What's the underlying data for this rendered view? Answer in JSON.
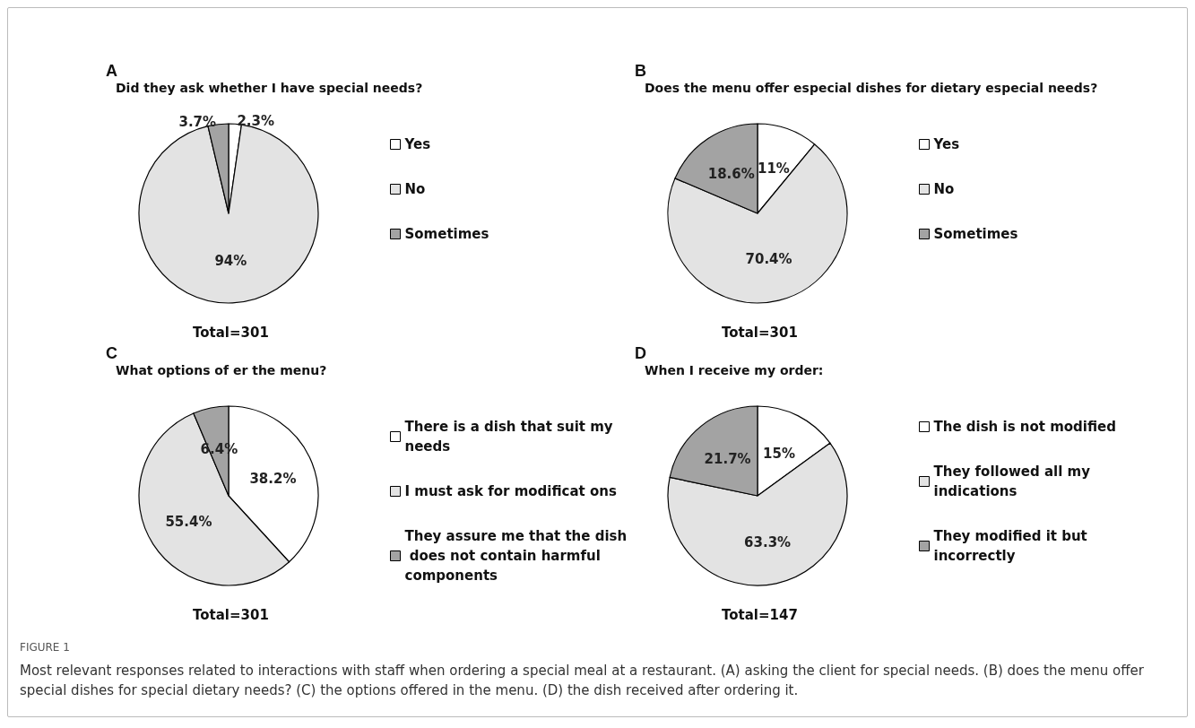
{
  "chart_data": [
    {
      "type": "pie",
      "title": "Did they ask whether I have special needs?",
      "categories": [
        "Yes",
        "No",
        "Sometimes"
      ],
      "values": [
        2.3,
        94,
        3.7
      ],
      "value_labels": [
        "2.3%",
        "94%",
        "3.7%"
      ],
      "colors": [
        "#ffffff",
        "#e3e3e3",
        "#a3a3a3"
      ],
      "legend": "right",
      "annotations": [
        "A",
        "Total=301"
      ]
    },
    {
      "type": "pie",
      "title": "Does the menu offer especial dishes for dietary especial needs?",
      "categories": [
        "Yes",
        "No",
        "Sometimes"
      ],
      "values": [
        11,
        70.4,
        18.6
      ],
      "value_labels": [
        "11%",
        "70.4%",
        "18.6%"
      ],
      "colors": [
        "#ffffff",
        "#e3e3e3",
        "#a3a3a3"
      ],
      "legend": "right",
      "annotations": [
        "B",
        "Total=301"
      ]
    },
    {
      "type": "pie",
      "title": "What options of er the menu?",
      "categories": [
        "There is a dish that suit my needs",
        "I must ask for modificat ons",
        "They assure me that the dish does not contain harmful components"
      ],
      "values": [
        38.2,
        55.4,
        6.4
      ],
      "value_labels": [
        "38.2%",
        "55.4%",
        "6.4%"
      ],
      "colors": [
        "#ffffff",
        "#e3e3e3",
        "#a3a3a3"
      ],
      "legend": "right",
      "annotations": [
        "C",
        "Total=301"
      ]
    },
    {
      "type": "pie",
      "title": "When I receive my order:",
      "categories": [
        "The dish is not modified",
        "They followed all my indications",
        "They modified it but incorrectly"
      ],
      "values": [
        15,
        63.3,
        21.7
      ],
      "value_labels": [
        "15%",
        "63.3%",
        "21.7%"
      ],
      "colors": [
        "#ffffff",
        "#e3e3e3",
        "#a3a3a3"
      ],
      "legend": "right",
      "annotations": [
        "D",
        "Total=147",
        "FIGURE 1",
        "Most relevant responses related to interactions with staff when ordering a special meal at a restaurant. (A) asking the client for special needs. (B) does the menu offer special dishes for special dietary needs? (C) the options offered in the menu. (D) the dish received after ordering it."
      ]
    }
  ]
}
